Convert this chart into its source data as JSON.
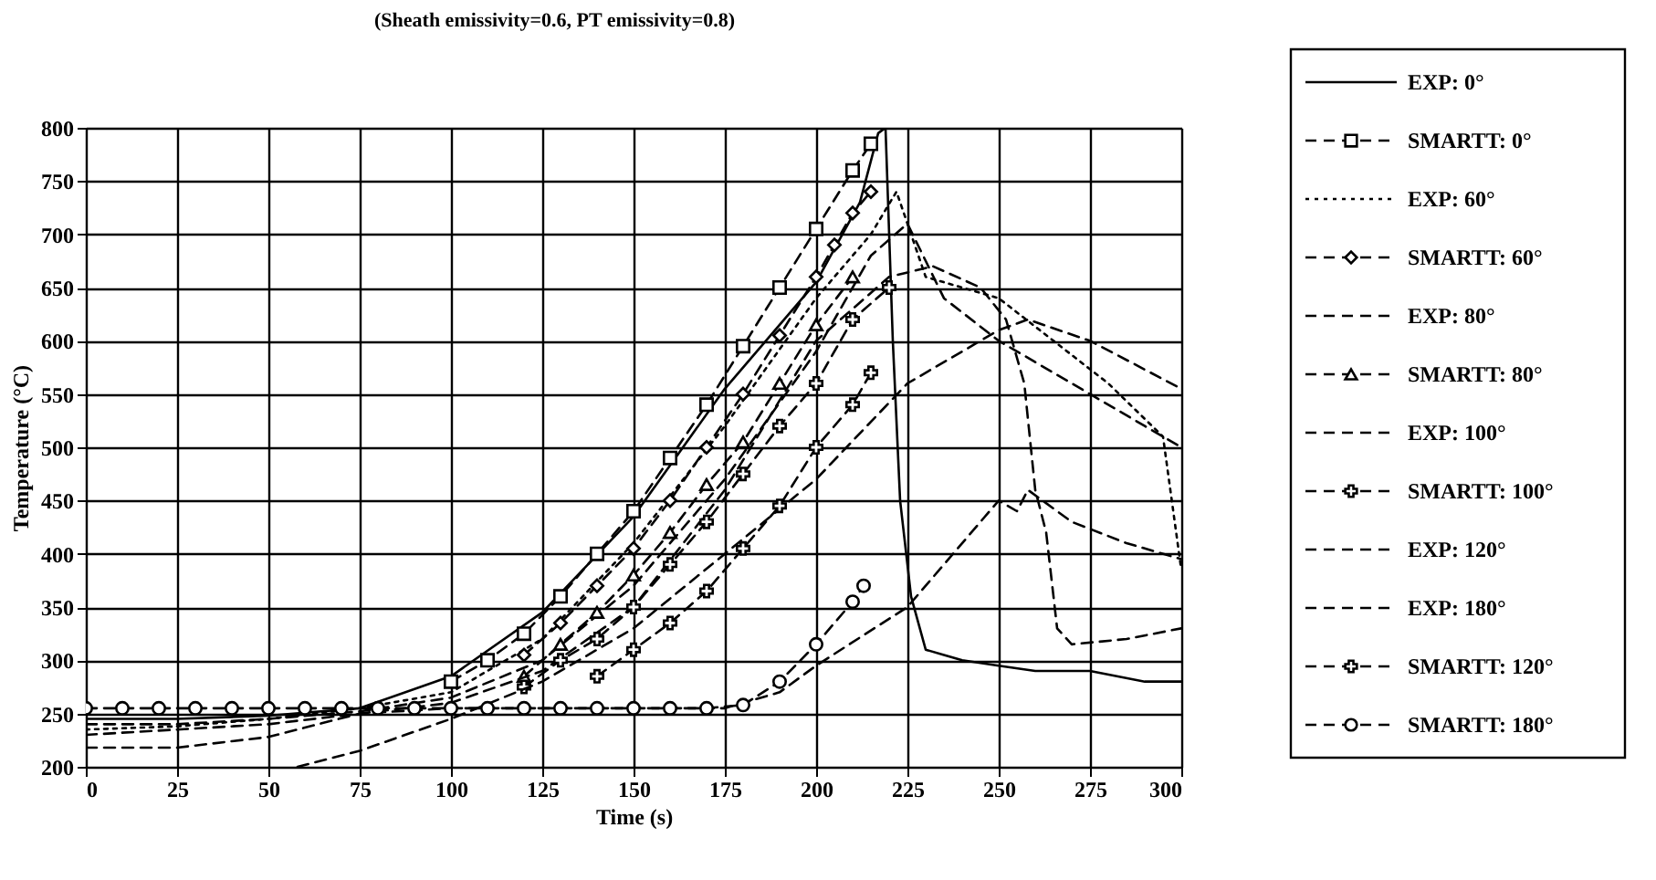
{
  "chart_data": {
    "type": "line",
    "title": "(Sheath emissivity=0.6, PT emissivity=0.8)",
    "xlabel": "Time (s)",
    "ylabel": "Temperature (°C)",
    "xlim": [
      0,
      300
    ],
    "xticks": [
      0,
      25,
      50,
      75,
      100,
      125,
      150,
      175,
      200,
      225,
      250,
      275,
      300
    ],
    "ylim": [
      200,
      800
    ],
    "yticks": [
      200,
      250,
      300,
      350,
      400,
      450,
      500,
      550,
      600,
      650,
      700,
      750,
      800
    ],
    "grid": true,
    "legend": "right",
    "series": [
      {
        "name": "EXP: 0°",
        "color": "#000000",
        "line_style": "solid",
        "marker": "none",
        "x": [
          0,
          25,
          50,
          75,
          100,
          125,
          150,
          175,
          200,
          212,
          217,
          219,
          221,
          223,
          226,
          230,
          235,
          240,
          250,
          260,
          275,
          290,
          300
        ],
        "values": [
          245,
          245,
          248,
          255,
          285,
          345,
          435,
          555,
          655,
          730,
          795,
          800,
          600,
          450,
          360,
          310,
          305,
          300,
          295,
          290,
          290,
          280,
          280
        ]
      },
      {
        "name": "SMARTT:  0°",
        "color": "#000000",
        "line_style": "dashed",
        "marker": "square",
        "x": [
          100,
          110,
          120,
          130,
          140,
          150,
          160,
          170,
          180,
          190,
          200,
          210,
          215
        ],
        "values": [
          280,
          300,
          325,
          360,
          400,
          440,
          490,
          540,
          595,
          650,
          705,
          760,
          785
        ]
      },
      {
        "name": "EXP: 60°",
        "color": "#000000",
        "line_style": "dotted",
        "marker": "none",
        "x": [
          0,
          25,
          50,
          75,
          100,
          125,
          150,
          175,
          200,
          215,
          222,
          230,
          250,
          265,
          280,
          295,
          300
        ],
        "values": [
          235,
          238,
          245,
          255,
          270,
          320,
          410,
          520,
          640,
          700,
          740,
          660,
          640,
          600,
          560,
          510,
          385
        ]
      },
      {
        "name": "SMARTT:  60°",
        "color": "#000000",
        "line_style": "dashed",
        "marker": "diamond",
        "x": [
          120,
          130,
          140,
          150,
          160,
          170,
          180,
          190,
          200,
          205,
          210,
          215
        ],
        "values": [
          305,
          335,
          370,
          405,
          450,
          500,
          550,
          605,
          660,
          690,
          720,
          740
        ]
      },
      {
        "name": "EXP: 80°",
        "color": "#000000",
        "line_style": "dashed",
        "marker": "none",
        "x": [
          0,
          25,
          50,
          75,
          100,
          125,
          150,
          175,
          200,
          215,
          225,
          235,
          250,
          260,
          275,
          290,
          300
        ],
        "values": [
          240,
          240,
          245,
          252,
          265,
          300,
          370,
          470,
          590,
          680,
          710,
          640,
          600,
          580,
          550,
          520,
          500
        ]
      },
      {
        "name": "SMARTT:  80°",
        "color": "#000000",
        "line_style": "dashed",
        "marker": "triangle",
        "x": [
          120,
          130,
          140,
          150,
          160,
          170,
          180,
          190,
          200,
          210
        ],
        "values": [
          285,
          315,
          345,
          380,
          420,
          465,
          505,
          560,
          615,
          660
        ]
      },
      {
        "name": "EXP: 100°",
        "color": "#000000",
        "line_style": "dashed",
        "marker": "none",
        "x": [
          0,
          50,
          75,
          100,
          125,
          150,
          175,
          200,
          220,
          232,
          245,
          252,
          257,
          260,
          263,
          266,
          270,
          285,
          300
        ],
        "values": [
          230,
          240,
          250,
          260,
          290,
          350,
          460,
          600,
          660,
          670,
          650,
          620,
          560,
          460,
          420,
          330,
          315,
          320,
          330
        ]
      },
      {
        "name": "SMARTT: 100°",
        "color": "#000000",
        "line_style": "dashed",
        "marker": "cross",
        "x": [
          120,
          130,
          140,
          150,
          160,
          170,
          180,
          190,
          200,
          210,
          220
        ],
        "values": [
          275,
          300,
          320,
          350,
          390,
          430,
          475,
          520,
          560,
          620,
          650
        ]
      },
      {
        "name": "EXP: 120°",
        "color": "#000000",
        "line_style": "dashed",
        "marker": "none",
        "x": [
          58,
          75,
          100,
          125,
          150,
          175,
          200,
          225,
          250,
          258,
          275,
          300
        ],
        "values": [
          200,
          215,
          245,
          280,
          330,
          400,
          470,
          560,
          610,
          620,
          600,
          555
        ]
      },
      {
        "name": "EXP: 180°",
        "color": "#000000",
        "line_style": "dashed",
        "marker": "none",
        "x": [
          0,
          25,
          50,
          75,
          100,
          150,
          175,
          190,
          200,
          225,
          250,
          255,
          258,
          262,
          270,
          285,
          300
        ],
        "values": [
          218,
          218,
          228,
          250,
          255,
          255,
          255,
          270,
          295,
          350,
          450,
          440,
          460,
          450,
          430,
          410,
          395
        ]
      },
      {
        "name": "SMARTT: 120°",
        "color": "#000000",
        "line_style": "dashed",
        "marker": "cross",
        "x": [
          140,
          150,
          160,
          170,
          180,
          190,
          200,
          210,
          215
        ],
        "values": [
          285,
          310,
          335,
          365,
          405,
          445,
          500,
          540,
          570
        ]
      },
      {
        "name": "SMARTT: 180°",
        "color": "#000000",
        "line_style": "dashed",
        "marker": "circle",
        "x": [
          0,
          10,
          20,
          30,
          40,
          50,
          60,
          70,
          80,
          90,
          100,
          110,
          120,
          130,
          140,
          150,
          160,
          170,
          180,
          190,
          200,
          210,
          213
        ],
        "values": [
          255,
          255,
          255,
          255,
          255,
          255,
          255,
          255,
          255,
          255,
          255,
          255,
          255,
          255,
          255,
          255,
          255,
          255,
          258,
          280,
          315,
          355,
          370
        ]
      }
    ]
  }
}
